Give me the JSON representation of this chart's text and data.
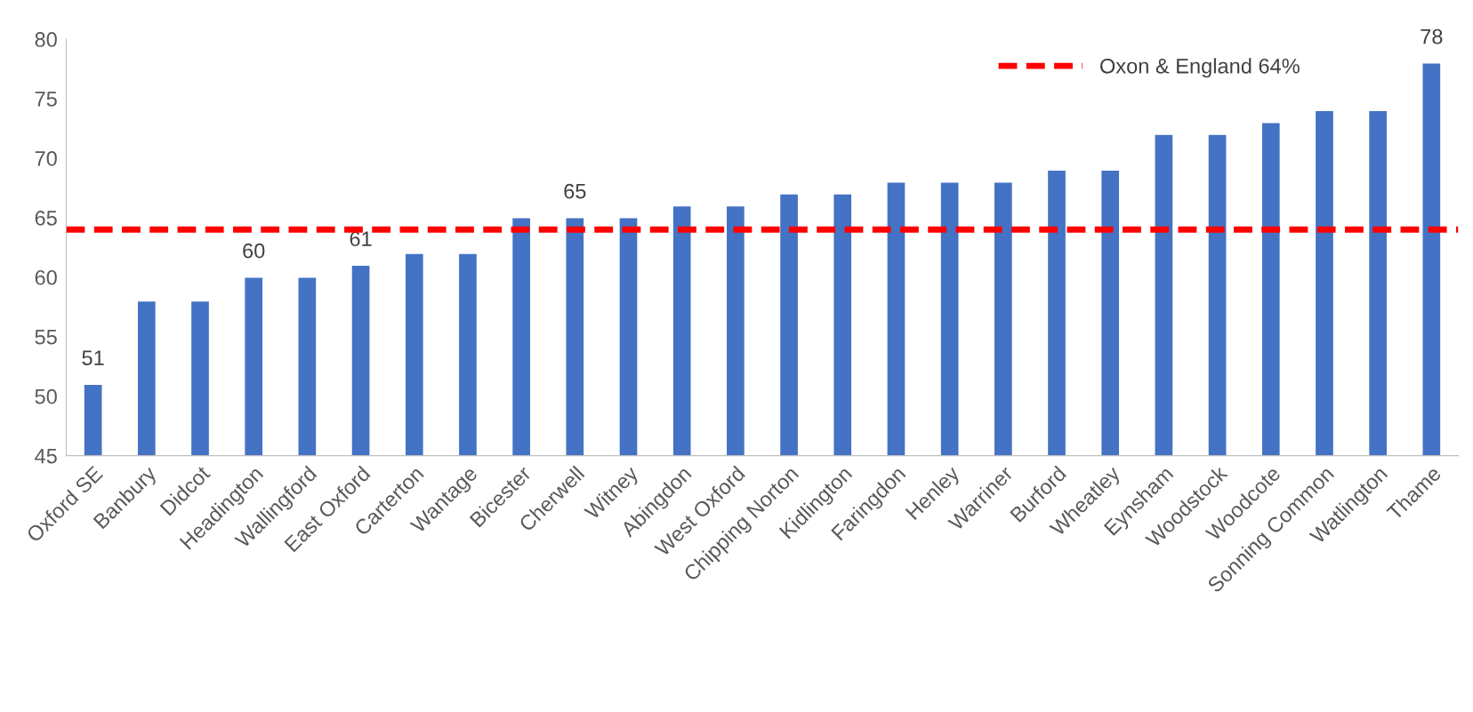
{
  "chart_data": {
    "type": "bar",
    "categories": [
      "Oxford SE",
      "Banbury",
      "Didcot",
      "Headington",
      "Wallingford",
      "East Oxford",
      "Carterton",
      "Wantage",
      "Bicester",
      "Cherwell",
      "Witney",
      "Abingdon",
      "West Oxford",
      "Chipping Norton",
      "Kidlington",
      "Faringdon",
      "Henley",
      "Warriner",
      "Burford",
      "Wheatley",
      "Eynsham",
      "Woodstock",
      "Woodcote",
      "Sonning Common",
      "Watlington",
      "Thame"
    ],
    "values": [
      51,
      58,
      58,
      60,
      60,
      61,
      62,
      62,
      65,
      65,
      65,
      66,
      66,
      67,
      67,
      68,
      68,
      68,
      69,
      69,
      72,
      72,
      73,
      74,
      74,
      78
    ],
    "value_labels": [
      "51",
      null,
      null,
      "60",
      null,
      "61",
      null,
      null,
      null,
      "65",
      null,
      null,
      null,
      null,
      null,
      null,
      null,
      null,
      null,
      null,
      null,
      null,
      null,
      null,
      null,
      "78"
    ],
    "color": "#4472c4",
    "ylim": [
      45,
      80
    ],
    "yticks": [
      45,
      50,
      55,
      60,
      65,
      70,
      75,
      80
    ],
    "ref_lines": [
      {
        "axis": "y",
        "value": 64,
        "label": "Oxon & England 64%",
        "color": "#ff0000",
        "line_style": "dashed"
      }
    ],
    "legend": "top right",
    "grid": false
  }
}
